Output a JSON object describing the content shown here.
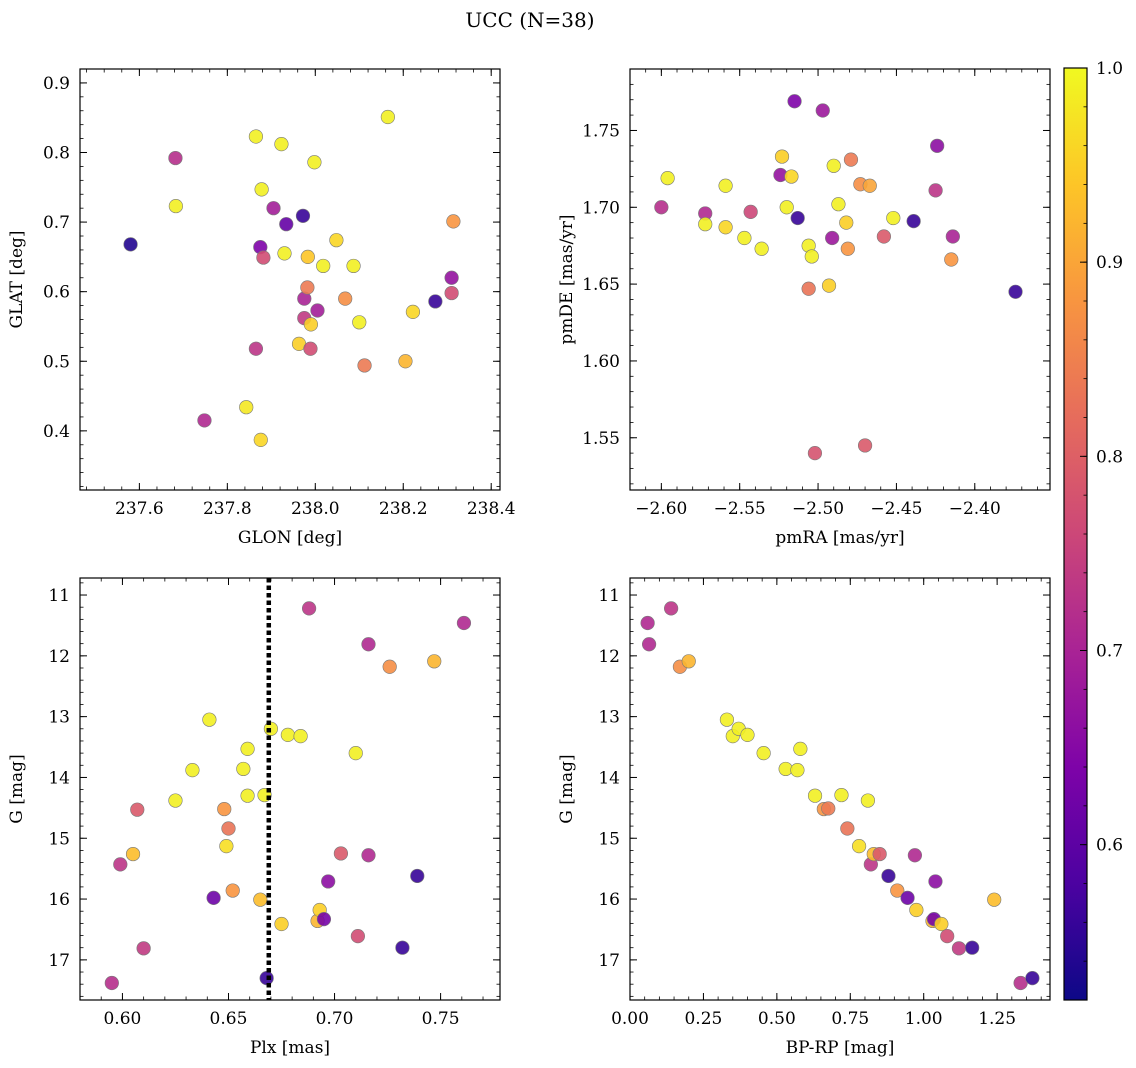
{
  "figure": {
    "title": "UCC (N=38)"
  },
  "colorbar": {
    "range": [
      0.52,
      1.0
    ],
    "ticks": [
      0.6,
      0.7,
      0.8,
      0.9,
      1.0
    ],
    "tick_labels": [
      "0.6",
      "0.7",
      "0.8",
      "0.9",
      "1.0"
    ],
    "colormap": "plasma"
  },
  "chart_data": [
    {
      "type": "scatter",
      "id": "glon-glat",
      "xlabel": "GLON [deg]",
      "ylabel": "GLAT [deg]",
      "xlim": [
        237.465,
        238.42
      ],
      "ylim": [
        0.315,
        0.92
      ],
      "xticks": [
        237.6,
        237.8,
        238.0,
        238.2,
        238.4
      ],
      "xtick_labels": [
        "237.6",
        "237.8",
        "238.0",
        "238.2",
        "238.4"
      ],
      "yticks": [
        0.4,
        0.5,
        0.6,
        0.7,
        0.8,
        0.9
      ],
      "ytick_labels": [
        "0.4",
        "0.5",
        "0.6",
        "0.7",
        "0.8",
        "0.9"
      ],
      "y_inverted": false,
      "points": [
        [
          237.58,
          0.668,
          0.54
        ],
        [
          237.682,
          0.792,
          0.72
        ],
        [
          237.683,
          0.723,
          0.99
        ],
        [
          237.748,
          0.415,
          0.71
        ],
        [
          237.843,
          0.434,
          0.98
        ],
        [
          237.865,
          0.823,
          0.99
        ],
        [
          237.865,
          0.518,
          0.73
        ],
        [
          237.875,
          0.664,
          0.64
        ],
        [
          237.878,
          0.747,
          0.99
        ],
        [
          237.876,
          0.387,
          0.96
        ],
        [
          237.882,
          0.649,
          0.77
        ],
        [
          237.905,
          0.72,
          0.69
        ],
        [
          237.923,
          0.812,
          0.99
        ],
        [
          237.93,
          0.655,
          0.99
        ],
        [
          237.934,
          0.697,
          0.61
        ],
        [
          237.963,
          0.525,
          0.95
        ],
        [
          237.972,
          0.709,
          0.56
        ],
        [
          237.975,
          0.59,
          0.7
        ],
        [
          237.975,
          0.562,
          0.74
        ],
        [
          237.982,
          0.606,
          0.84
        ],
        [
          237.983,
          0.65,
          0.94
        ],
        [
          237.989,
          0.518,
          0.77
        ],
        [
          237.99,
          0.553,
          0.95
        ],
        [
          237.998,
          0.786,
          0.99
        ],
        [
          238.005,
          0.573,
          0.69
        ],
        [
          238.018,
          0.637,
          0.99
        ],
        [
          238.048,
          0.674,
          0.96
        ],
        [
          238.068,
          0.59,
          0.87
        ],
        [
          238.087,
          0.637,
          0.99
        ],
        [
          238.1,
          0.556,
          0.99
        ],
        [
          238.112,
          0.494,
          0.84
        ],
        [
          238.165,
          0.851,
          0.99
        ],
        [
          238.205,
          0.5,
          0.92
        ],
        [
          238.222,
          0.571,
          0.96
        ],
        [
          238.273,
          0.586,
          0.56
        ],
        [
          238.31,
          0.62,
          0.67
        ],
        [
          238.31,
          0.598,
          0.77
        ],
        [
          238.314,
          0.701,
          0.88
        ]
      ]
    },
    {
      "type": "scatter",
      "id": "pmra-pmde",
      "xlabel": "pmRA [mas/yr]",
      "ylabel": "pmDE [mas/yr]",
      "xlim": [
        -2.62,
        -2.352
      ],
      "ylim": [
        1.516,
        1.79
      ],
      "xticks": [
        -2.6,
        -2.55,
        -2.5,
        -2.45,
        -2.4
      ],
      "xtick_labels": [
        "−2.60",
        "−2.55",
        "−2.50",
        "−2.45",
        "−2.40"
      ],
      "yticks": [
        1.55,
        1.6,
        1.65,
        1.7,
        1.75
      ],
      "ytick_labels": [
        "1.55",
        "1.60",
        "1.65",
        "1.70",
        "1.75"
      ],
      "y_inverted": false,
      "points": [
        [
          -2.6,
          1.7,
          0.72
        ],
        [
          -2.596,
          1.719,
          0.99
        ],
        [
          -2.572,
          1.696,
          0.71
        ],
        [
          -2.572,
          1.689,
          0.99
        ],
        [
          -2.559,
          1.714,
          0.99
        ],
        [
          -2.559,
          1.687,
          0.96
        ],
        [
          -2.547,
          1.68,
          0.99
        ],
        [
          -2.543,
          1.697,
          0.76
        ],
        [
          -2.536,
          1.673,
          0.99
        ],
        [
          -2.524,
          1.721,
          0.67
        ],
        [
          -2.523,
          1.733,
          0.95
        ],
        [
          -2.52,
          1.7,
          0.99
        ],
        [
          -2.517,
          1.72,
          0.96
        ],
        [
          -2.515,
          1.769,
          0.64
        ],
        [
          -2.513,
          1.693,
          0.56
        ],
        [
          -2.506,
          1.647,
          0.83
        ],
        [
          -2.506,
          1.675,
          0.99
        ],
        [
          -2.504,
          1.668,
          0.99
        ],
        [
          -2.502,
          1.54,
          0.78
        ],
        [
          -2.497,
          1.763,
          0.68
        ],
        [
          -2.493,
          1.649,
          0.95
        ],
        [
          -2.491,
          1.68,
          0.68
        ],
        [
          -2.49,
          1.727,
          0.99
        ],
        [
          -2.487,
          1.702,
          0.99
        ],
        [
          -2.482,
          1.69,
          0.95
        ],
        [
          -2.481,
          1.673,
          0.88
        ],
        [
          -2.479,
          1.731,
          0.84
        ],
        [
          -2.473,
          1.715,
          0.87
        ],
        [
          -2.47,
          1.545,
          0.79
        ],
        [
          -2.467,
          1.714,
          0.9
        ],
        [
          -2.458,
          1.681,
          0.79
        ],
        [
          -2.452,
          1.693,
          0.99
        ],
        [
          -2.439,
          1.691,
          0.56
        ],
        [
          -2.425,
          1.711,
          0.73
        ],
        [
          -2.424,
          1.74,
          0.66
        ],
        [
          -2.415,
          1.666,
          0.88
        ],
        [
          -2.414,
          1.681,
          0.7
        ],
        [
          -2.374,
          1.645,
          0.56
        ]
      ]
    },
    {
      "type": "scatter",
      "id": "plx-g",
      "xlabel": "Plx [mas]",
      "ylabel": "G [mag]",
      "xlim": [
        0.58,
        0.778
      ],
      "ylim": [
        17.66,
        10.72
      ],
      "xticks": [
        0.6,
        0.65,
        0.7,
        0.75
      ],
      "xtick_labels": [
        "0.60",
        "0.65",
        "0.70",
        "0.75"
      ],
      "yticks": [
        11,
        12,
        13,
        14,
        15,
        16,
        17
      ],
      "ytick_labels": [
        "11",
        "12",
        "13",
        "14",
        "15",
        "16",
        "17"
      ],
      "y_inverted": true,
      "vline": {
        "x": 0.669,
        "style": "dotted"
      },
      "points": [
        [
          0.595,
          17.38,
          0.72
        ],
        [
          0.599,
          15.43,
          0.73
        ],
        [
          0.605,
          15.26,
          0.93
        ],
        [
          0.607,
          14.53,
          0.79
        ],
        [
          0.61,
          16.81,
          0.74
        ],
        [
          0.625,
          14.38,
          0.99
        ],
        [
          0.633,
          13.88,
          0.99
        ],
        [
          0.641,
          13.05,
          0.99
        ],
        [
          0.643,
          15.98,
          0.62
        ],
        [
          0.648,
          14.52,
          0.88
        ],
        [
          0.649,
          15.13,
          0.97
        ],
        [
          0.65,
          14.84,
          0.83
        ],
        [
          0.652,
          15.86,
          0.88
        ],
        [
          0.657,
          13.86,
          0.99
        ],
        [
          0.659,
          13.53,
          0.99
        ],
        [
          0.659,
          14.3,
          0.99
        ],
        [
          0.665,
          16.01,
          0.93
        ],
        [
          0.667,
          14.29,
          0.99
        ],
        [
          0.668,
          17.3,
          0.56
        ],
        [
          0.67,
          13.2,
          0.99
        ],
        [
          0.675,
          16.41,
          0.95
        ],
        [
          0.678,
          13.3,
          0.99
        ],
        [
          0.684,
          13.32,
          0.99
        ],
        [
          0.688,
          11.22,
          0.73
        ],
        [
          0.692,
          16.36,
          0.92
        ],
        [
          0.693,
          16.18,
          0.95
        ],
        [
          0.695,
          16.33,
          0.63
        ],
        [
          0.697,
          15.71,
          0.66
        ],
        [
          0.703,
          15.25,
          0.79
        ],
        [
          0.71,
          13.6,
          0.99
        ],
        [
          0.711,
          16.61,
          0.77
        ],
        [
          0.716,
          15.28,
          0.71
        ],
        [
          0.716,
          11.81,
          0.71
        ],
        [
          0.726,
          12.18,
          0.87
        ],
        [
          0.732,
          16.8,
          0.56
        ],
        [
          0.739,
          15.62,
          0.56
        ],
        [
          0.747,
          12.09,
          0.92
        ],
        [
          0.761,
          11.46,
          0.71
        ]
      ]
    },
    {
      "type": "scatter",
      "id": "bprp-g",
      "xlabel": "BP-RP [mag]",
      "ylabel": "G [mag]",
      "xlim": [
        0.0,
        1.43
      ],
      "ylim": [
        17.66,
        10.72
      ],
      "xticks": [
        0.0,
        0.25,
        0.5,
        0.75,
        1.0,
        1.25
      ],
      "xtick_labels": [
        "0.00",
        "0.25",
        "0.50",
        "0.75",
        "1.00",
        "1.25"
      ],
      "yticks": [
        11,
        12,
        13,
        14,
        15,
        16,
        17
      ],
      "ytick_labels": [
        "11",
        "12",
        "13",
        "14",
        "15",
        "16",
        "17"
      ],
      "y_inverted": true,
      "points": [
        [
          0.06,
          11.46,
          0.71
        ],
        [
          0.065,
          11.81,
          0.71
        ],
        [
          0.14,
          11.22,
          0.73
        ],
        [
          0.17,
          12.18,
          0.87
        ],
        [
          0.2,
          12.09,
          0.92
        ],
        [
          0.33,
          13.05,
          0.99
        ],
        [
          0.35,
          13.32,
          0.99
        ],
        [
          0.37,
          13.2,
          0.99
        ],
        [
          0.4,
          13.3,
          0.99
        ],
        [
          0.455,
          13.6,
          0.99
        ],
        [
          0.53,
          13.86,
          0.99
        ],
        [
          0.57,
          13.88,
          0.99
        ],
        [
          0.58,
          13.53,
          0.99
        ],
        [
          0.63,
          14.3,
          0.99
        ],
        [
          0.66,
          14.52,
          0.88
        ],
        [
          0.675,
          14.51,
          0.84
        ],
        [
          0.72,
          14.29,
          0.99
        ],
        [
          0.74,
          14.84,
          0.83
        ],
        [
          0.78,
          15.13,
          0.97
        ],
        [
          0.81,
          14.38,
          0.99
        ],
        [
          0.82,
          15.43,
          0.73
        ],
        [
          0.83,
          15.26,
          0.93
        ],
        [
          0.85,
          15.26,
          0.79
        ],
        [
          0.88,
          15.62,
          0.56
        ],
        [
          0.91,
          15.86,
          0.88
        ],
        [
          0.945,
          15.98,
          0.62
        ],
        [
          0.97,
          15.28,
          0.71
        ],
        [
          0.975,
          16.18,
          0.95
        ],
        [
          1.03,
          16.36,
          0.92
        ],
        [
          1.035,
          16.33,
          0.63
        ],
        [
          1.04,
          15.71,
          0.66
        ],
        [
          1.06,
          16.41,
          0.95
        ],
        [
          1.08,
          16.61,
          0.77
        ],
        [
          1.12,
          16.81,
          0.74
        ],
        [
          1.165,
          16.8,
          0.56
        ],
        [
          1.24,
          16.01,
          0.93
        ],
        [
          1.33,
          17.38,
          0.72
        ],
        [
          1.37,
          17.3,
          0.56
        ]
      ]
    }
  ]
}
